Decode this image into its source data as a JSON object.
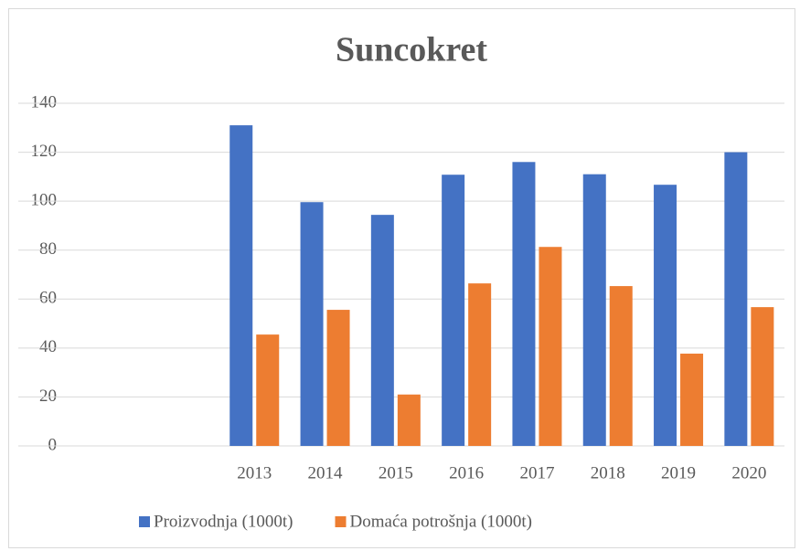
{
  "chart_data": {
    "type": "bar",
    "title": "Suncokret",
    "categories": [
      null,
      null,
      "2013",
      "2014",
      "2015",
      "2016",
      "2017",
      "2018",
      "2019",
      "2020"
    ],
    "series": [
      {
        "name": "Proizvodnja (1000t)",
        "color": "#4472c4",
        "values": [
          null,
          null,
          131,
          99.6,
          94.4,
          110.8,
          116,
          111,
          106.7,
          120
        ]
      },
      {
        "name": "Domaća potrošnja (1000t)",
        "color": "#ed7d31",
        "values": [
          null,
          null,
          45.5,
          55.6,
          21,
          66.4,
          81.3,
          65.3,
          37.7,
          56.7
        ]
      }
    ],
    "ylim": [
      0,
      140
    ],
    "yticks": [
      0,
      20,
      40,
      60,
      80,
      100,
      120,
      140
    ],
    "grid": true,
    "legend": "bottom"
  }
}
